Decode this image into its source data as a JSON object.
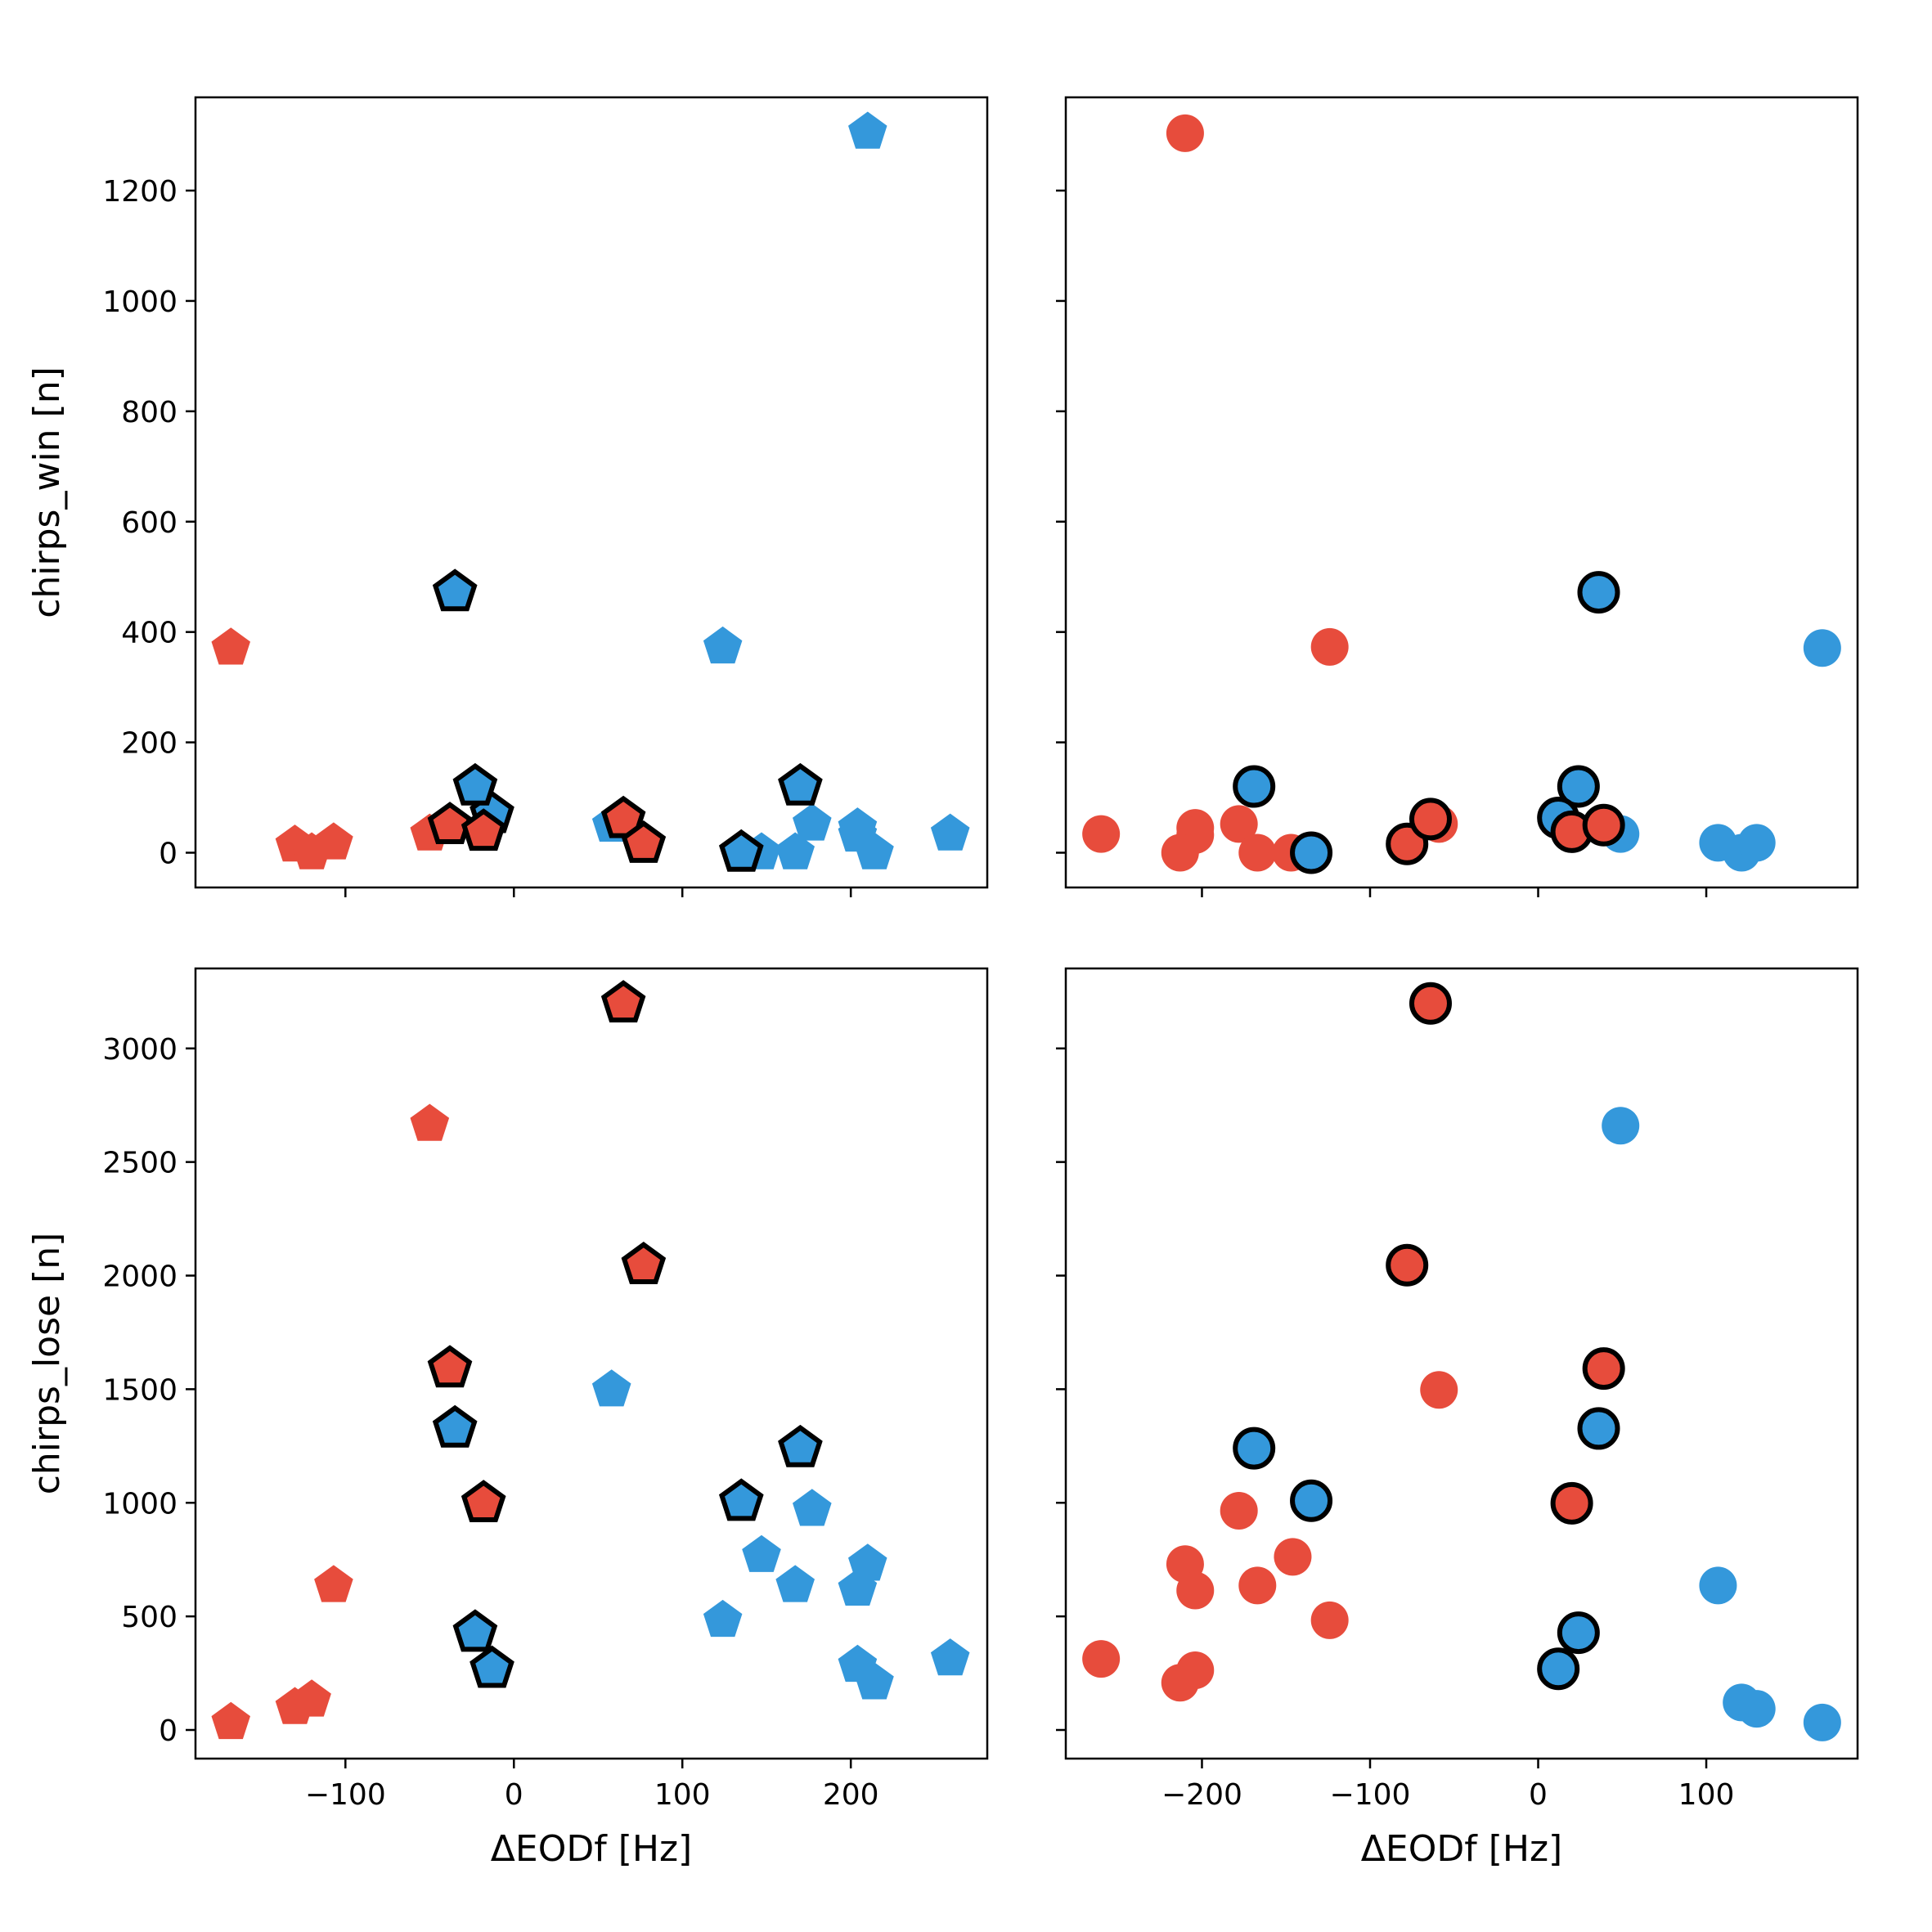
{
  "colors": {
    "red": "#e74c3c",
    "blue": "#3498db",
    "edge": "#000000"
  },
  "chart_data": [
    {
      "type": "scatter",
      "panel": "top-left",
      "marker": "pentagon",
      "xlabel": "",
      "ylabel": "chirps_win [n]",
      "xlim": [
        -189,
        281
      ],
      "ylim": [
        -63,
        1369
      ],
      "xticks": [
        -100,
        0,
        100,
        200
      ],
      "xtick_labels": [
        "",
        "",
        "",
        ""
      ],
      "yticks": [
        0,
        200,
        400,
        600,
        800,
        1000,
        1200
      ],
      "ytick_labels": [
        "0",
        "200",
        "400",
        "600",
        "800",
        "1000",
        "1200"
      ],
      "points": [
        {
          "x": -168,
          "y": 371,
          "color": "red",
          "outlined": false
        },
        {
          "x": -130,
          "y": 14,
          "color": "red",
          "outlined": false
        },
        {
          "x": -120,
          "y": 0,
          "color": "red",
          "outlined": false
        },
        {
          "x": -107,
          "y": 18,
          "color": "red",
          "outlined": false
        },
        {
          "x": -50,
          "y": 34,
          "color": "red",
          "outlined": false
        },
        {
          "x": 210,
          "y": 1306,
          "color": "blue",
          "outlined": false
        },
        {
          "x": 124,
          "y": 373,
          "color": "blue",
          "outlined": false
        },
        {
          "x": 58,
          "y": 50,
          "color": "blue",
          "outlined": false
        },
        {
          "x": 147,
          "y": 0,
          "color": "blue",
          "outlined": false
        },
        {
          "x": 167,
          "y": 0,
          "color": "blue",
          "outlined": false
        },
        {
          "x": 177,
          "y": 52,
          "color": "blue",
          "outlined": false
        },
        {
          "x": 204,
          "y": 45,
          "color": "blue",
          "outlined": false
        },
        {
          "x": 204,
          "y": 32,
          "color": "blue",
          "outlined": false
        },
        {
          "x": 214,
          "y": 0,
          "color": "blue",
          "outlined": false
        },
        {
          "x": 259,
          "y": 34,
          "color": "blue",
          "outlined": false
        },
        {
          "x": -35,
          "y": 472,
          "color": "blue",
          "outlined": true
        },
        {
          "x": -13,
          "y": 70,
          "color": "blue",
          "outlined": true
        },
        {
          "x": -23,
          "y": 120,
          "color": "blue",
          "outlined": true
        },
        {
          "x": 170,
          "y": 120,
          "color": "blue",
          "outlined": true
        },
        {
          "x": 135,
          "y": 0,
          "color": "blue",
          "outlined": true
        },
        {
          "x": -38,
          "y": 50,
          "color": "red",
          "outlined": true
        },
        {
          "x": -18,
          "y": 38,
          "color": "red",
          "outlined": true
        },
        {
          "x": 65,
          "y": 61,
          "color": "red",
          "outlined": true
        },
        {
          "x": 77,
          "y": 16,
          "color": "red",
          "outlined": true
        }
      ]
    },
    {
      "type": "scatter",
      "panel": "top-right",
      "marker": "circle",
      "xlabel": "",
      "ylabel": "",
      "xlim": [
        -281,
        190
      ],
      "ylim": [
        -63,
        1369
      ],
      "xticks": [
        -200,
        -100,
        0,
        100
      ],
      "xtick_labels": [
        "",
        "",
        "",
        ""
      ],
      "yticks": [
        0,
        200,
        400,
        600,
        800,
        1000,
        1200
      ],
      "ytick_labels": [
        "",
        "",
        "",
        "",
        "",
        "",
        ""
      ],
      "points": [
        {
          "x": -210,
          "y": 1304,
          "color": "red",
          "outlined": false
        },
        {
          "x": -124,
          "y": 373,
          "color": "red",
          "outlined": false
        },
        {
          "x": -260,
          "y": 34,
          "color": "red",
          "outlined": false
        },
        {
          "x": -204,
          "y": 45,
          "color": "red",
          "outlined": false
        },
        {
          "x": -204,
          "y": 32,
          "color": "red",
          "outlined": false
        },
        {
          "x": -213,
          "y": 0,
          "color": "red",
          "outlined": false
        },
        {
          "x": -178,
          "y": 52,
          "color": "red",
          "outlined": false
        },
        {
          "x": -167,
          "y": 0,
          "color": "red",
          "outlined": false
        },
        {
          "x": -147,
          "y": 0,
          "color": "red",
          "outlined": false
        },
        {
          "x": -59,
          "y": 52,
          "color": "red",
          "outlined": false
        },
        {
          "x": 169,
          "y": 371,
          "color": "blue",
          "outlined": false
        },
        {
          "x": 49,
          "y": 34,
          "color": "blue",
          "outlined": false
        },
        {
          "x": 107,
          "y": 18,
          "color": "blue",
          "outlined": false
        },
        {
          "x": 121,
          "y": 0,
          "color": "blue",
          "outlined": false
        },
        {
          "x": 130,
          "y": 18,
          "color": "blue",
          "outlined": false
        },
        {
          "x": 36,
          "y": 472,
          "color": "blue",
          "outlined": true
        },
        {
          "x": 24,
          "y": 120,
          "color": "blue",
          "outlined": true
        },
        {
          "x": 12,
          "y": 63,
          "color": "blue",
          "outlined": true
        },
        {
          "x": -169,
          "y": 120,
          "color": "blue",
          "outlined": true
        },
        {
          "x": -135,
          "y": 0,
          "color": "blue",
          "outlined": true
        },
        {
          "x": -78,
          "y": 16,
          "color": "red",
          "outlined": true
        },
        {
          "x": -64,
          "y": 61,
          "color": "red",
          "outlined": true
        },
        {
          "x": 20,
          "y": 38,
          "color": "red",
          "outlined": true
        },
        {
          "x": 39,
          "y": 50,
          "color": "red",
          "outlined": true
        }
      ]
    },
    {
      "type": "scatter",
      "panel": "bottom-left",
      "marker": "pentagon",
      "xlabel": "ΔEODf [Hz]",
      "ylabel": "chirps_lose [n]",
      "xlim": [
        -189,
        281
      ],
      "ylim": [
        -126,
        3352
      ],
      "xticks": [
        -100,
        0,
        100,
        200
      ],
      "xtick_labels": [
        "−100",
        "0",
        "100",
        "200"
      ],
      "yticks": [
        0,
        500,
        1000,
        1500,
        2000,
        2500,
        3000
      ],
      "ytick_labels": [
        "0",
        "500",
        "1000",
        "1500",
        "2000",
        "2500",
        "3000"
      ],
      "points": [
        {
          "x": -168,
          "y": 33,
          "color": "red",
          "outlined": false
        },
        {
          "x": -130,
          "y": 99,
          "color": "red",
          "outlined": false
        },
        {
          "x": -120,
          "y": 132,
          "color": "red",
          "outlined": false
        },
        {
          "x": -107,
          "y": 636,
          "color": "red",
          "outlined": false
        },
        {
          "x": -50,
          "y": 2666,
          "color": "red",
          "outlined": false
        },
        {
          "x": 58,
          "y": 1497,
          "color": "blue",
          "outlined": false
        },
        {
          "x": 124,
          "y": 483,
          "color": "blue",
          "outlined": false
        },
        {
          "x": 147,
          "y": 768,
          "color": "blue",
          "outlined": false
        },
        {
          "x": 167,
          "y": 636,
          "color": "blue",
          "outlined": false
        },
        {
          "x": 177,
          "y": 971,
          "color": "blue",
          "outlined": false
        },
        {
          "x": 204,
          "y": 620,
          "color": "blue",
          "outlined": false
        },
        {
          "x": 210,
          "y": 730,
          "color": "blue",
          "outlined": false
        },
        {
          "x": 204,
          "y": 285,
          "color": "blue",
          "outlined": false
        },
        {
          "x": 214,
          "y": 208,
          "color": "blue",
          "outlined": false
        },
        {
          "x": 259,
          "y": 313,
          "color": "blue",
          "outlined": false
        },
        {
          "x": 65,
          "y": 3198,
          "color": "red",
          "outlined": true
        },
        {
          "x": 77,
          "y": 2046,
          "color": "red",
          "outlined": true
        },
        {
          "x": -38,
          "y": 1591,
          "color": "red",
          "outlined": true
        },
        {
          "x": -18,
          "y": 998,
          "color": "red",
          "outlined": true
        },
        {
          "x": -35,
          "y": 1327,
          "color": "blue",
          "outlined": true
        },
        {
          "x": -23,
          "y": 428,
          "color": "blue",
          "outlined": true
        },
        {
          "x": -13,
          "y": 269,
          "color": "blue",
          "outlined": true
        },
        {
          "x": 170,
          "y": 1240,
          "color": "blue",
          "outlined": true
        },
        {
          "x": 135,
          "y": 1004,
          "color": "blue",
          "outlined": true
        }
      ]
    },
    {
      "type": "scatter",
      "panel": "bottom-right",
      "marker": "circle",
      "xlabel": "ΔEODf [Hz]",
      "ylabel": "",
      "xlim": [
        -281,
        190
      ],
      "ylim": [
        -126,
        3352
      ],
      "xticks": [
        -200,
        -100,
        0,
        100
      ],
      "xtick_labels": [
        "−200",
        "−100",
        "0",
        "100"
      ],
      "yticks": [
        0,
        500,
        1000,
        1500,
        2000,
        2500,
        3000
      ],
      "ytick_labels": [
        "",
        "",
        "",
        "",
        "",
        "",
        ""
      ],
      "points": [
        {
          "x": -59,
          "y": 1497,
          "color": "red",
          "outlined": false
        },
        {
          "x": -178,
          "y": 965,
          "color": "red",
          "outlined": false
        },
        {
          "x": -146,
          "y": 762,
          "color": "red",
          "outlined": false
        },
        {
          "x": -210,
          "y": 730,
          "color": "red",
          "outlined": false
        },
        {
          "x": -204,
          "y": 614,
          "color": "red",
          "outlined": false
        },
        {
          "x": -167,
          "y": 636,
          "color": "red",
          "outlined": false
        },
        {
          "x": -124,
          "y": 483,
          "color": "red",
          "outlined": false
        },
        {
          "x": -260,
          "y": 313,
          "color": "red",
          "outlined": false
        },
        {
          "x": -213,
          "y": 208,
          "color": "red",
          "outlined": false
        },
        {
          "x": -204,
          "y": 263,
          "color": "red",
          "outlined": false
        },
        {
          "x": 49,
          "y": 2660,
          "color": "blue",
          "outlined": false
        },
        {
          "x": 107,
          "y": 636,
          "color": "blue",
          "outlined": false
        },
        {
          "x": 121,
          "y": 121,
          "color": "blue",
          "outlined": false
        },
        {
          "x": 130,
          "y": 93,
          "color": "blue",
          "outlined": false
        },
        {
          "x": 169,
          "y": 33,
          "color": "blue",
          "outlined": false
        },
        {
          "x": -64,
          "y": 3198,
          "color": "red",
          "outlined": true
        },
        {
          "x": -78,
          "y": 2046,
          "color": "red",
          "outlined": true
        },
        {
          "x": 39,
          "y": 1591,
          "color": "red",
          "outlined": true
        },
        {
          "x": 20,
          "y": 998,
          "color": "red",
          "outlined": true
        },
        {
          "x": -169,
          "y": 1240,
          "color": "blue",
          "outlined": true
        },
        {
          "x": -135,
          "y": 1009,
          "color": "blue",
          "outlined": true
        },
        {
          "x": 36,
          "y": 1327,
          "color": "blue",
          "outlined": true
        },
        {
          "x": 24,
          "y": 428,
          "color": "blue",
          "outlined": true
        },
        {
          "x": 12,
          "y": 269,
          "color": "blue",
          "outlined": true
        }
      ]
    }
  ]
}
